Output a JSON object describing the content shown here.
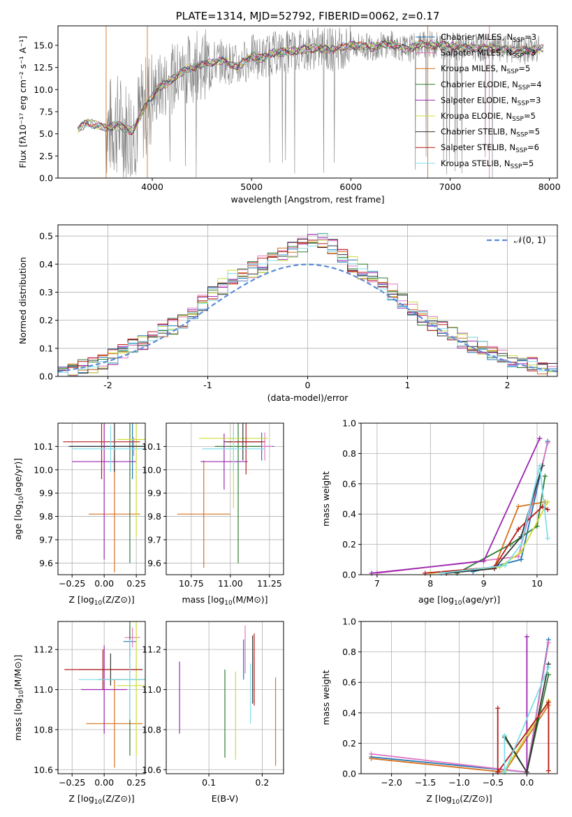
{
  "chart_data": [
    {
      "id": "spectrum",
      "type": "line",
      "title": "PLATE=1314, MJD=52792, FIBERID=0062, z=0.17",
      "xlabel": "wavelength [Angstrom, rest frame]",
      "ylabel": "Flux [fλ10⁻¹⁷ erg cm⁻² s⁻¹ A⁻¹]",
      "xlim": [
        3050,
        8080
      ],
      "ylim": [
        0,
        17.2
      ],
      "xticks": [
        4000,
        5000,
        6000,
        7000,
        8000
      ],
      "yticks": [
        0.0,
        2.5,
        5.0,
        7.5,
        10.0,
        12.5,
        15.0
      ],
      "grid": false,
      "legend_position": "right",
      "series": [
        {
          "name": "Chabrier MILES, N_SSP=3",
          "label_main": "Chabrier MILES, N",
          "label_sub": "SSP",
          "label_tail": "=3",
          "color": "#1f77b4"
        },
        {
          "name": "Salpeter MILES, N_SSP=3",
          "label_main": "Salpeter MILES, N",
          "label_sub": "SSP",
          "label_tail": "=3",
          "color": "#e377c2"
        },
        {
          "name": "Kroupa MILES, N_SSP=5",
          "label_main": "Kroupa MILES, N",
          "label_sub": "SSP",
          "label_tail": "=5",
          "color": "#d6721f"
        },
        {
          "name": "Chabrier ELODIE, N_SSP=4",
          "label_main": "Chabrier ELODIE, N",
          "label_sub": "SSP",
          "label_tail": "=4",
          "color": "#2e7d32"
        },
        {
          "name": "Salpeter ELODIE, N_SSP=3",
          "label_main": "Salpeter ELODIE, N",
          "label_sub": "SSP",
          "label_tail": "=3",
          "color": "#9b27b0"
        },
        {
          "name": "Kroupa ELODIE, N_SSP=5",
          "label_main": "Kroupa ELODIE, N",
          "label_sub": "SSP",
          "label_tail": "=5",
          "color": "#cddc39"
        },
        {
          "name": "Chabrier STELIB, N_SSP=5",
          "label_main": "Chabrier STELIB, N",
          "label_sub": "SSP",
          "label_tail": "=5",
          "color": "#333333"
        },
        {
          "name": "Salpeter STELIB, N_SSP=6",
          "label_main": "Salpeter STELIB, N",
          "label_sub": "SSP",
          "label_tail": "=6",
          "color": "#b71c1c"
        },
        {
          "name": "Kroupa STELIB, N_SSP=5",
          "label_main": "Kroupa STELIB, N",
          "label_sub": "SSP",
          "label_tail": "=5",
          "color": "#80deea"
        }
      ],
      "model_points": [
        [
          3250,
          5.5
        ],
        [
          3350,
          6.3
        ],
        [
          3450,
          5.9
        ],
        [
          3550,
          5.6
        ],
        [
          3650,
          6.1
        ],
        [
          3750,
          5.5
        ],
        [
          3800,
          5.3
        ],
        [
          3870,
          6.8
        ],
        [
          3950,
          8.5
        ],
        [
          4050,
          10.0
        ],
        [
          4200,
          11.2
        ],
        [
          4350,
          12.3
        ],
        [
          4500,
          12.8
        ],
        [
          4700,
          13.3
        ],
        [
          4861,
          12.6
        ],
        [
          5000,
          13.8
        ],
        [
          5100,
          13.5
        ],
        [
          5200,
          14.1
        ],
        [
          5400,
          14.3
        ],
        [
          5600,
          14.7
        ],
        [
          5800,
          14.5
        ],
        [
          6000,
          15.0
        ],
        [
          6200,
          14.8
        ],
        [
          6400,
          15.2
        ],
        [
          6563,
          14.5
        ],
        [
          6700,
          15.1
        ],
        [
          6900,
          15.0
        ],
        [
          7100,
          14.8
        ],
        [
          7300,
          14.7
        ],
        [
          7500,
          14.6
        ],
        [
          7700,
          14.4
        ],
        [
          7900,
          14.6
        ]
      ]
    },
    {
      "id": "residuals",
      "type": "histogram",
      "xlabel": "(data-model)/error",
      "ylabel": "Normed distribution",
      "xlim": [
        -2.5,
        2.5
      ],
      "ylim": [
        0,
        0.54
      ],
      "xticks": [
        -2,
        -1,
        0,
        1,
        2
      ],
      "yticks": [
        0.0,
        0.1,
        0.2,
        0.3,
        0.4,
        0.5
      ],
      "grid": true,
      "legend_position": "top-right",
      "gaussian_label": "𝒩(0, 1)",
      "gaussian_color": "#5b8bd9",
      "bin_edges": [
        -2.5,
        2.5
      ],
      "bin_width": 0.1,
      "hist_values": [
        0.02,
        0.02,
        0.03,
        0.04,
        0.05,
        0.07,
        0.09,
        0.11,
        0.12,
        0.14,
        0.16,
        0.18,
        0.2,
        0.23,
        0.26,
        0.29,
        0.32,
        0.35,
        0.36,
        0.38,
        0.4,
        0.42,
        0.44,
        0.45,
        0.47,
        0.49,
        0.48,
        0.46,
        0.43,
        0.4,
        0.37,
        0.35,
        0.33,
        0.3,
        0.27,
        0.24,
        0.21,
        0.19,
        0.17,
        0.15,
        0.13,
        0.11,
        0.1,
        0.08,
        0.07,
        0.06,
        0.05,
        0.04,
        0.03,
        0.02
      ]
    },
    {
      "id": "age-Z",
      "type": "errorbar",
      "xlabel_main": "Z [log",
      "xlabel_sub": "10",
      "xlabel_tail": "(Z/Z⊙)]",
      "ylabel_main": "age  [log",
      "ylabel_sub": "10",
      "ylabel_tail": "(age/yr)]",
      "xlim": [
        -0.36,
        0.32
      ],
      "ylim": [
        9.55,
        10.2
      ],
      "xticks": [
        -0.25,
        0.0,
        0.25
      ],
      "xticklabels": [
        "−0.25",
        "0.00",
        "0.25"
      ],
      "yticks": [
        9.6,
        9.7,
        9.8,
        9.9,
        10.0,
        10.1
      ],
      "grid": true,
      "points": [
        {
          "x": 0.22,
          "y": 10.1,
          "xerr": 0.5,
          "yerr": 0.14,
          "color": "#1f77b4"
        },
        {
          "x": 0.23,
          "y": 10.1,
          "xerr": 0.1,
          "yerr": 0.04,
          "color": "#e377c2"
        },
        {
          "x": 0.08,
          "y": 9.81,
          "xerr": 0.2,
          "yerr": 0.25,
          "color": "#d6721f"
        },
        {
          "x": 0.2,
          "y": 10.1,
          "xerr": 0.1,
          "yerr": 0.5,
          "color": "#2e7d32"
        },
        {
          "x": 0.0,
          "y": 10.035,
          "xerr": 0.25,
          "yerr": 0.42,
          "color": "#9b27b0"
        },
        {
          "x": 0.25,
          "y": 10.13,
          "xerr": 0.15,
          "yerr": 0.42,
          "color": "#cddc39"
        },
        {
          "x": 0.08,
          "y": 10.1,
          "xerr": 0.35,
          "yerr": 0.11,
          "color": "#333333"
        },
        {
          "x": -0.02,
          "y": 10.12,
          "xerr": 0.3,
          "yerr": 0.16,
          "color": "#b71c1c"
        },
        {
          "x": 0.05,
          "y": 10.09,
          "xerr": 0.3,
          "yerr": 0.1,
          "color": "#80deea"
        }
      ]
    },
    {
      "id": "age-mass",
      "type": "errorbar",
      "xlabel_main": "mass [log",
      "xlabel_sub": "10",
      "xlabel_tail": "(M/M⊙)]",
      "ylabel_main": "",
      "ylabel_sub": "",
      "ylabel_tail": "",
      "xlim": [
        10.59,
        11.34
      ],
      "ylim": [
        9.55,
        10.2
      ],
      "xticks": [
        10.75,
        11.0,
        11.25
      ],
      "xticklabels": [
        "10.75",
        "11.00",
        "11.25"
      ],
      "yticks": [
        9.6,
        9.7,
        9.8,
        9.9,
        10.0,
        10.1
      ],
      "grid": true,
      "points": [
        {
          "x": 11.2,
          "y": 10.1,
          "xerr": 0.08,
          "yerr": 0.06,
          "color": "#1f77b4"
        },
        {
          "x": 11.22,
          "y": 10.1,
          "xerr": 0.05,
          "yerr": 0.06,
          "color": "#e377c2"
        },
        {
          "x": 10.83,
          "y": 9.81,
          "xerr": 0.17,
          "yerr": 0.23,
          "color": "#d6721f"
        },
        {
          "x": 11.05,
          "y": 10.1,
          "xerr": 0.15,
          "yerr": 0.5,
          "color": "#2e7d32"
        },
        {
          "x": 10.96,
          "y": 10.035,
          "xerr": 0.15,
          "yerr": 0.12,
          "color": "#9b27b0"
        },
        {
          "x": 11.02,
          "y": 10.135,
          "xerr": 0.22,
          "yerr": 0.3,
          "color": "#cddc39"
        },
        {
          "x": 11.08,
          "y": 10.12,
          "xerr": 0.12,
          "yerr": 0.08,
          "color": "#333333"
        },
        {
          "x": 11.1,
          "y": 10.12,
          "xerr": 0.12,
          "yerr": 0.14,
          "color": "#b71c1c"
        },
        {
          "x": 11.02,
          "y": 10.09,
          "xerr": 0.2,
          "yerr": 0.1,
          "color": "#80deea"
        }
      ]
    },
    {
      "id": "massweight-age",
      "type": "line",
      "xlabel_main": "age  [log",
      "xlabel_sub": "10",
      "xlabel_tail": "(age/yr)]",
      "ylabel": "mass weight",
      "xlim": [
        6.7,
        10.38
      ],
      "ylim": [
        0.0,
        1.0
      ],
      "xticks": [
        7,
        8,
        9,
        10
      ],
      "yticks": [
        0.0,
        0.2,
        0.4,
        0.6,
        0.8,
        1.0
      ],
      "grid": true,
      "series": [
        {
          "color": "#1f77b4",
          "x": [
            8.8,
            9.7,
            10.2
          ],
          "y": [
            0.02,
            0.1,
            0.88
          ]
        },
        {
          "color": "#e377c2",
          "x": [
            7.0,
            9.65,
            10.2
          ],
          "y": [
            0.01,
            0.12,
            0.87
          ]
        },
        {
          "color": "#d6721f",
          "x": [
            9.2,
            9.65,
            10.15
          ],
          "y": [
            0.05,
            0.45,
            0.48
          ]
        },
        {
          "color": "#2e7d32",
          "x": [
            8.5,
            9.5,
            10.0,
            10.15
          ],
          "y": [
            0.01,
            0.2,
            0.32,
            0.65
          ]
        },
        {
          "color": "#9b27b0",
          "x": [
            6.9,
            9.0,
            10.05
          ],
          "y": [
            0.01,
            0.09,
            0.9
          ]
        },
        {
          "color": "#cddc39",
          "x": [
            8.0,
            9.3,
            9.7,
            10.2
          ],
          "y": [
            0.01,
            0.05,
            0.15,
            0.48
          ]
        },
        {
          "color": "#333333",
          "x": [
            8.3,
            9.2,
            9.7,
            10.1
          ],
          "y": [
            0.01,
            0.04,
            0.25,
            0.72
          ]
        },
        {
          "color": "#b71c1c",
          "x": [
            7.9,
            9.2,
            9.65,
            10.1,
            10.2
          ],
          "y": [
            0.01,
            0.05,
            0.3,
            0.45,
            0.43
          ]
        },
        {
          "color": "#80deea",
          "x": [
            8.2,
            9.4,
            9.7,
            10.05,
            10.2
          ],
          "y": [
            0.01,
            0.06,
            0.2,
            0.72,
            0.24
          ]
        }
      ]
    },
    {
      "id": "mass-Z",
      "type": "errorbar",
      "xlabel_main": "Z [log",
      "xlabel_sub": "10",
      "xlabel_tail": "(Z/Z⊙)]",
      "ylabel_main": "mass [log",
      "ylabel_sub": "10",
      "ylabel_tail": "(M/M⊙)]",
      "xlim": [
        -0.36,
        0.32
      ],
      "ylim": [
        10.58,
        11.34
      ],
      "xticks": [
        -0.25,
        0.0,
        0.25
      ],
      "xticklabels": [
        "−0.25",
        "0.00",
        "0.25"
      ],
      "yticks": [
        10.6,
        10.8,
        11.0,
        11.2
      ],
      "grid": true,
      "points": [
        {
          "x": 0.2,
          "y": 11.24,
          "xerr": 0.05,
          "yerr": 0.08,
          "color": "#1f77b4"
        },
        {
          "x": 0.22,
          "y": 11.26,
          "xerr": 0.06,
          "yerr": 0.05,
          "color": "#e377c2"
        },
        {
          "x": 0.08,
          "y": 10.83,
          "xerr": 0.22,
          "yerr": 0.22,
          "color": "#d6721f"
        },
        {
          "x": 0.2,
          "y": 11.05,
          "xerr": 0.25,
          "yerr": 0.38,
          "color": "#2e7d32"
        },
        {
          "x": 0.0,
          "y": 11.0,
          "xerr": 0.18,
          "yerr": 0.22,
          "color": "#9b27b0"
        },
        {
          "x": 0.25,
          "y": 11.02,
          "xerr": 0.15,
          "yerr": 0.35,
          "color": "#cddc39"
        },
        {
          "x": 0.05,
          "y": 11.1,
          "xerr": 0.25,
          "yerr": 0.08,
          "color": "#333333"
        },
        {
          "x": -0.01,
          "y": 11.1,
          "xerr": 0.3,
          "yerr": 0.1,
          "color": "#b71c1c"
        },
        {
          "x": 0.2,
          "y": 11.05,
          "xerr": 0.4,
          "yerr": 0.2,
          "color": "#80deea"
        }
      ]
    },
    {
      "id": "mass-EBV",
      "type": "errorbar",
      "xlabel_main": "E(B-V)",
      "xlabel_sub": "",
      "xlabel_tail": "",
      "ylabel_main": "",
      "ylabel_sub": "",
      "ylabel_tail": "",
      "xlim": [
        0.02,
        0.24
      ],
      "ylim": [
        10.58,
        11.34
      ],
      "xticks": [
        0.1,
        0.2
      ],
      "xticklabels": [
        "0.1",
        "0.2"
      ],
      "yticks": [
        10.6,
        10.8,
        11.0,
        11.2
      ],
      "grid": true,
      "points": [
        {
          "x": 0.165,
          "y": 11.15,
          "xerr": 0,
          "yerr": 0.1,
          "color": "#1f77b4"
        },
        {
          "x": 0.168,
          "y": 11.2,
          "xerr": 0,
          "yerr": 0.12,
          "color": "#e377c2"
        },
        {
          "x": 0.225,
          "y": 10.84,
          "xerr": 0,
          "yerr": 0.22,
          "color": "#d6721f"
        },
        {
          "x": 0.13,
          "y": 10.88,
          "xerr": 0,
          "yerr": 0.22,
          "color": "#2e7d32"
        },
        {
          "x": 0.045,
          "y": 10.96,
          "xerr": 0,
          "yerr": 0.18,
          "color": "#9b27b0"
        },
        {
          "x": 0.15,
          "y": 10.87,
          "xerr": 0,
          "yerr": 0.22,
          "color": "#cddc39"
        },
        {
          "x": 0.182,
          "y": 11.1,
          "xerr": 0,
          "yerr": 0.17,
          "color": "#333333"
        },
        {
          "x": 0.185,
          "y": 11.1,
          "xerr": 0,
          "yerr": 0.18,
          "color": "#b71c1c"
        },
        {
          "x": 0.178,
          "y": 10.98,
          "xerr": 0,
          "yerr": 0.15,
          "color": "#80deea"
        }
      ]
    },
    {
      "id": "massweight-Z",
      "type": "line",
      "xlabel_main": "Z [log",
      "xlabel_sub": "10",
      "xlabel_tail": "(Z/Z⊙)]",
      "ylabel": "mass weight",
      "xlim": [
        -2.45,
        0.45
      ],
      "ylim": [
        0.0,
        1.0
      ],
      "xticks": [
        -2.0,
        -1.5,
        -1.0,
        -0.5,
        0.0
      ],
      "xticklabels": [
        "−2.0",
        "−1.5",
        "−1.0",
        "−0.5",
        "0.0"
      ],
      "yticks": [
        0.0,
        0.2,
        0.4,
        0.6,
        0.8,
        1.0
      ],
      "grid": true,
      "series": [
        {
          "color": "#1f77b4",
          "x": [
            -2.3,
            0.0,
            0.32
          ],
          "y": [
            0.11,
            0.01,
            0.88
          ]
        },
        {
          "color": "#e377c2",
          "x": [
            -2.3,
            0.0,
            0.32
          ],
          "y": [
            0.13,
            0.01,
            0.86
          ]
        },
        {
          "color": "#d6721f",
          "x": [
            -2.3,
            -0.33,
            0.32,
            0.32
          ],
          "y": [
            0.1,
            0.01,
            0.45,
            0.02
          ]
        },
        {
          "color": "#2e7d32",
          "x": [
            -0.33,
            0.0,
            0.32
          ],
          "y": [
            0.24,
            0.01,
            0.65
          ]
        },
        {
          "color": "#9b27b0",
          "x": [
            0.0,
            0.0
          ],
          "y": [
            0.9,
            0.01
          ]
        },
        {
          "color": "#cddc39",
          "x": [
            -0.33,
            0.32,
            0.32
          ],
          "y": [
            0.02,
            0.48,
            0.02
          ]
        },
        {
          "color": "#333333",
          "x": [
            -0.33,
            0.0,
            0.32
          ],
          "y": [
            0.25,
            0.01,
            0.72
          ]
        },
        {
          "color": "#b71c1c",
          "x": [
            -0.43,
            -0.43,
            0.32,
            0.32
          ],
          "y": [
            0.43,
            0.01,
            0.47,
            0.02
          ]
        },
        {
          "color": "#80deea",
          "x": [
            -0.33,
            -0.33,
            0.32
          ],
          "y": [
            0.25,
            0.01,
            0.7
          ]
        }
      ]
    }
  ]
}
